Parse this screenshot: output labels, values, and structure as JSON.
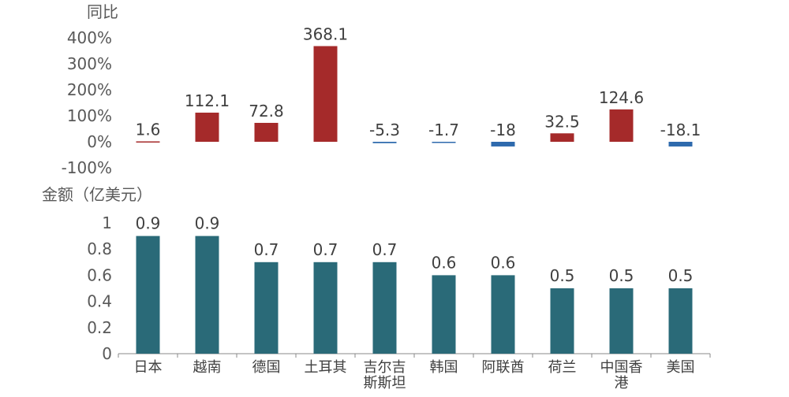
{
  "chart_data": [
    {
      "type": "bar",
      "ylabel": "同比",
      "ylim": [
        -100,
        400
      ],
      "yticks": [
        400,
        300,
        200,
        100,
        0,
        -100
      ],
      "ytick_labels": [
        "400%",
        "300%",
        "200%",
        "100%",
        "0%",
        "-100%"
      ],
      "categories": [
        "日本",
        "越南",
        "德国",
        "土耳其",
        "吉尔吉斯斯坦",
        "韩国",
        "阿联酋",
        "荷兰",
        "中国香港",
        "美国"
      ],
      "values": [
        1.6,
        112.1,
        72.8,
        368.1,
        -5.3,
        -1.7,
        -18,
        32.5,
        124.6,
        -18.1
      ],
      "value_labels": [
        "1.6",
        "112.1",
        "72.8",
        "368.1",
        "-5.3",
        "-1.7",
        "-18",
        "32.5",
        "124.6",
        "-18.1"
      ],
      "colors": {
        "positive": "#a52a2a",
        "negative": "#2e6aad"
      },
      "grid": false
    },
    {
      "type": "bar",
      "ylabel": "金额（亿美元）",
      "ylim": [
        0,
        1
      ],
      "yticks": [
        1,
        0.8,
        0.6,
        0.4,
        0.2,
        0
      ],
      "ytick_labels": [
        "1",
        "0.8",
        "0.6",
        "0.4",
        "0.2",
        "0"
      ],
      "categories": [
        "日本",
        "越南",
        "德国",
        "土耳其",
        "吉尔吉斯斯坦",
        "韩国",
        "阿联酋",
        "荷兰",
        "中国香港",
        "美国"
      ],
      "category_label_lines": [
        [
          "日本"
        ],
        [
          "越南"
        ],
        [
          "德国"
        ],
        [
          "土耳其"
        ],
        [
          "吉尔吉",
          "斯斯坦"
        ],
        [
          "韩国"
        ],
        [
          "阿联酋"
        ],
        [
          "荷兰"
        ],
        [
          "中国香",
          "港"
        ],
        [
          "美国"
        ]
      ],
      "values": [
        0.9,
        0.9,
        0.7,
        0.7,
        0.7,
        0.6,
        0.6,
        0.5,
        0.5,
        0.5
      ],
      "value_labels": [
        "0.9",
        "0.9",
        "0.7",
        "0.7",
        "0.7",
        "0.6",
        "0.6",
        "0.5",
        "0.5",
        "0.5"
      ],
      "colors": {
        "bar": "#2a6a78",
        "axis": "#888888"
      },
      "grid": false
    }
  ]
}
